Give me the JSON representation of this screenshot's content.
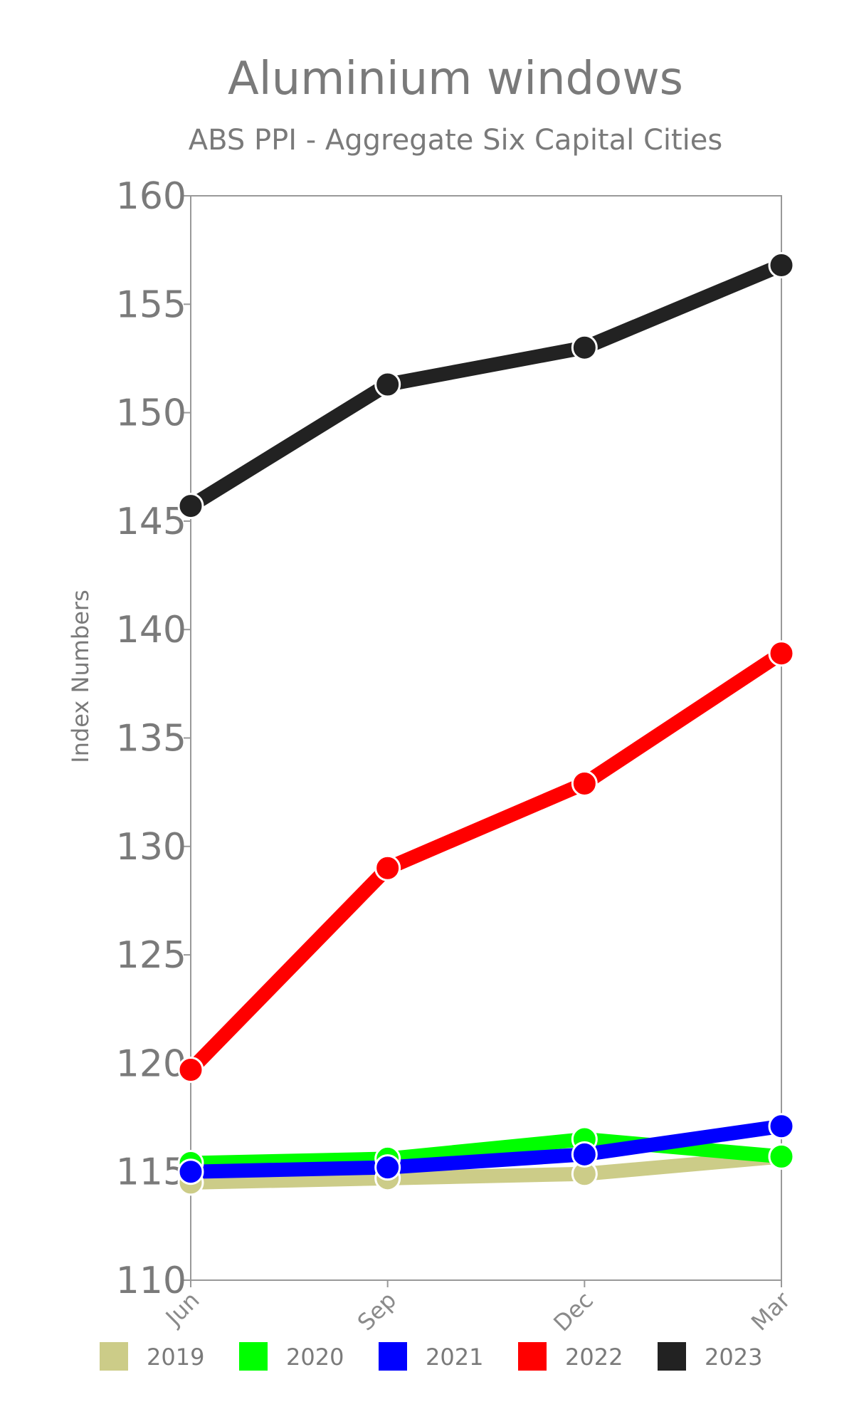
{
  "chart_data": {
    "type": "line",
    "title": "Aluminium windows",
    "subtitle": "ABS PPI - Aggregate Six Capital Cities",
    "xlabel": "",
    "ylabel": "Index Numbers",
    "categories": [
      "Jun",
      "Sep",
      "Dec",
      "Mar"
    ],
    "ylim": [
      110,
      160
    ],
    "yticks": [
      "110",
      "115",
      "120",
      "125",
      "130",
      "135",
      "140",
      "145",
      "150",
      "155",
      "160"
    ],
    "grid": false,
    "legend_position": "bottom",
    "series": [
      {
        "name": "2019",
        "color": "#cccc88",
        "values": [
          114.5,
          114.7,
          114.9,
          115.7
        ]
      },
      {
        "name": "2020",
        "color": "#00ff00",
        "values": [
          115.4,
          115.6,
          116.5,
          115.7
        ]
      },
      {
        "name": "2021",
        "color": "#0000ff",
        "values": [
          115.0,
          115.2,
          115.8,
          117.1
        ]
      },
      {
        "name": "2022",
        "color": "#ff0000",
        "values": [
          119.7,
          129.0,
          132.9,
          138.9
        ]
      },
      {
        "name": "2023",
        "color": "#222222",
        "values": [
          145.7,
          151.3,
          153.0,
          156.8
        ]
      }
    ]
  }
}
